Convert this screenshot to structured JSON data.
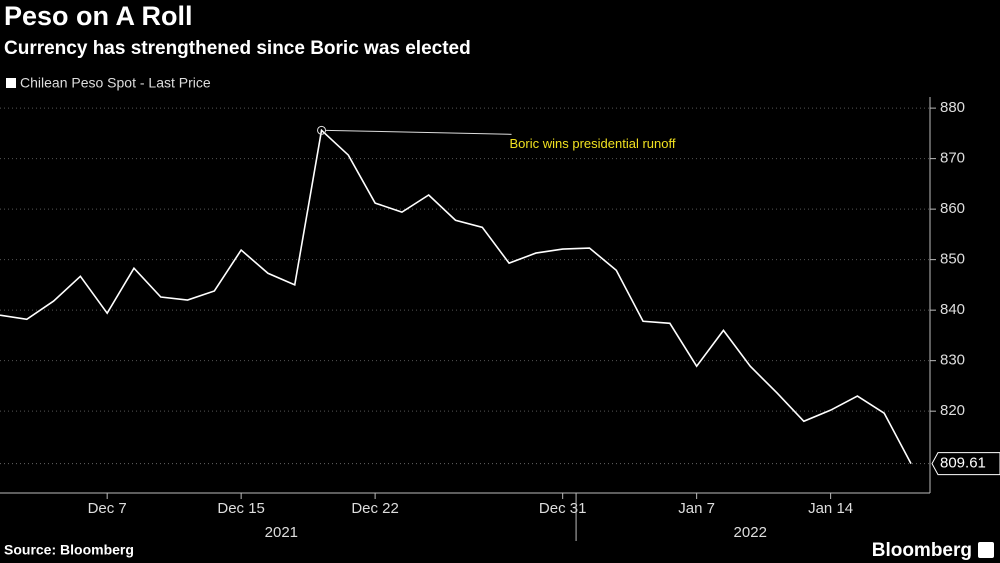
{
  "chart_data": {
    "type": "line",
    "title": "Peso on A Roll",
    "subtitle": "Currency has strengthened since Boric was elected",
    "x": [
      "2021-12-01",
      "2021-12-02",
      "2021-12-03",
      "2021-12-06",
      "2021-12-07",
      "2021-12-09",
      "2021-12-10",
      "2021-12-13",
      "2021-12-14",
      "2021-12-15",
      "2021-12-16",
      "2021-12-17",
      "2021-12-20",
      "2021-12-21",
      "2021-12-22",
      "2021-12-23",
      "2021-12-24",
      "2021-12-27",
      "2021-12-28",
      "2021-12-29",
      "2021-12-30",
      "2021-12-31",
      "2022-01-03",
      "2022-01-04",
      "2022-01-05",
      "2022-01-06",
      "2022-01-07",
      "2022-01-10",
      "2022-01-11",
      "2022-01-12",
      "2022-01-13",
      "2022-01-14",
      "2022-01-17",
      "2022-01-18",
      "2022-01-19"
    ],
    "series": [
      {
        "name": "Chilean Peso Spot - Last Price",
        "color": "#ffffff",
        "values": [
          839.0,
          838.2,
          841.8,
          846.7,
          839.4,
          848.3,
          842.6,
          842.0,
          843.8,
          851.9,
          847.3,
          845.0,
          875.6,
          870.7,
          861.2,
          859.4,
          862.8,
          857.8,
          856.4,
          849.3,
          851.3,
          852.1,
          852.3,
          847.9,
          837.8,
          837.4,
          828.9,
          836.0,
          828.9,
          823.6,
          818.0,
          820.2,
          823.0,
          819.6,
          809.61
        ]
      }
    ],
    "xticks": [
      {
        "value": "2021-12-07",
        "label": "Dec 7"
      },
      {
        "value": "2021-12-15",
        "label": "Dec 15"
      },
      {
        "value": "2021-12-22",
        "label": "Dec 22"
      },
      {
        "value": "2021-12-31",
        "label": "Dec 31"
      },
      {
        "value": "2022-01-07",
        "label": "Jan 7"
      },
      {
        "value": "2022-01-14",
        "label": "Jan 14"
      }
    ],
    "x_groups": [
      "2021",
      "2022"
    ],
    "ylim": [
      803.8,
      882.2
    ],
    "yticks": [
      820,
      830,
      840,
      850,
      860,
      870,
      880
    ],
    "grid": true,
    "annotations": [
      {
        "text": "Boric wins presidential runoff",
        "x": "2021-12-20"
      }
    ],
    "source": "Source: Bloomberg",
    "brand": "Bloomberg"
  }
}
